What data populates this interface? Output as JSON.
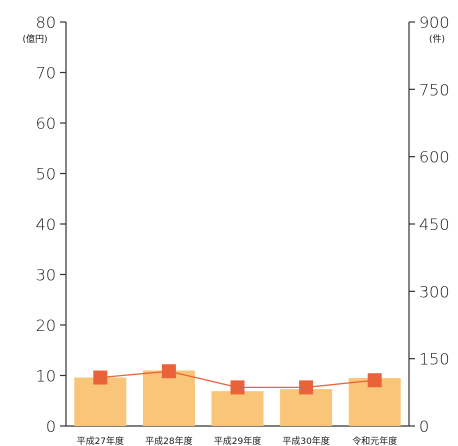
{
  "chart_data": {
    "type": "bar",
    "categories": [
      "平成27年度",
      "平成28年度",
      "平成29年度",
      "平成30年度",
      "令和元年度"
    ],
    "series": [
      {
        "values": [
          9.6,
          11.0,
          6.9,
          7.3,
          9.5
        ],
        "axis": "left",
        "mark": "bar",
        "color": "#f9c578"
      },
      {
        "values": [
          108,
          122,
          86,
          86,
          102
        ],
        "axis": "right",
        "mark": "line-square",
        "color": "#e8623a"
      }
    ],
    "y_left": {
      "unit": "(億円)",
      "range": [
        0,
        80
      ],
      "ticks": [
        0,
        10,
        20,
        30,
        40,
        50,
        60,
        70,
        80
      ]
    },
    "y_right": {
      "unit": "(件)",
      "range": [
        0,
        900
      ],
      "ticks": [
        0,
        150,
        300,
        450,
        600,
        750,
        900
      ]
    },
    "grid": false,
    "legend": "none"
  }
}
